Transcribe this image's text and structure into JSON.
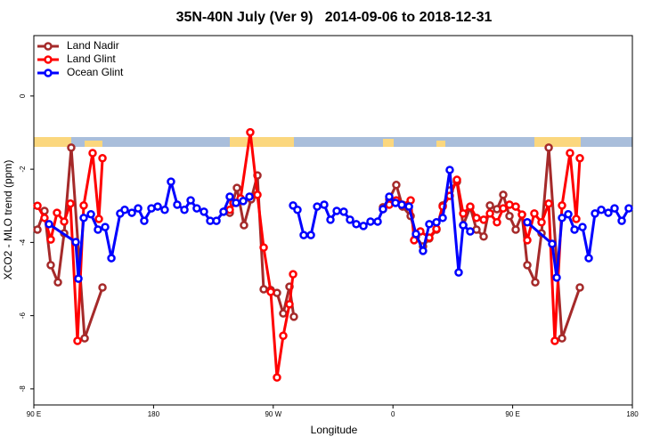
{
  "chart_data": {
    "type": "line",
    "title": "35N-40N July (Ver 9)   2014-09-06 to 2018-12-31",
    "x_label": "Longitude",
    "y_label": "XCO2 - MLO trend (ppm)",
    "xlim": [
      90,
      540
    ],
    "xticks": [
      90,
      180,
      {
        "value": 270,
        "label": "90 W"
      },
      {
        "value": 360,
        "label": "0"
      },
      {
        "value": 450,
        "label": "90 E"
      },
      {
        "value": 540,
        "label": "180"
      }
    ],
    "xtick_first_label": "90 E",
    "ylim": [
      -8.44,
      1.65
    ],
    "yticks": [
      0,
      -2,
      -4,
      -6,
      -8
    ],
    "legend_position": "top-left",
    "series": [
      {
        "name": "Land Nadir",
        "color": "#a52a2a",
        "x": [
          92.7,
          98.0,
          102.7,
          108.1,
          112.8,
          118.1,
          128.2,
          141.6,
          null,
          237.3,
          242.7,
          248.0,
          253.4,
          258.1,
          262.8,
          268.1,
          272.8,
          277.5,
          282.2,
          285.5,
          null,
          352.5,
          357.2,
          362.5,
          367.2,
          373.3,
          377.3,
          382.6,
          387.3,
          392.7,
          397.4,
          402.7,
          408.1,
          412.8,
          418.1,
          422.8,
          428.2,
          432.9,
          438.2,
          442.9,
          447.6,
          452.3,
          457.0,
          461.0,
          467.0,
          471.7,
          477.1,
          487.1,
          500.5
        ],
        "values": [
          -3.65,
          -3.14,
          -4.62,
          -5.09,
          -3.75,
          -1.41,
          -6.62,
          -5.23,
          null,
          -3.19,
          -2.51,
          -3.53,
          -2.82,
          -2.17,
          -5.28,
          -5.3,
          -5.38,
          -5.94,
          -5.21,
          -6.03,
          null,
          -3.04,
          -2.82,
          -2.43,
          -3.02,
          -3.28,
          -3.84,
          -4.11,
          -3.89,
          -3.65,
          -2.99,
          -2.58,
          -2.34,
          -3.53,
          -3.04,
          -3.65,
          -3.84,
          -2.99,
          -3.09,
          -2.7,
          -3.28,
          -3.65,
          -3.24,
          -4.62,
          -5.09,
          -3.75,
          -1.41,
          -6.62,
          -5.23
        ]
      },
      {
        "name": "Land Glint",
        "color": "#ff0000",
        "x": [
          92.7,
          98.0,
          102.7,
          107.4,
          112.8,
          117.5,
          122.8,
          127.5,
          134.2,
          138.9,
          141.6,
          null,
          237.3,
          240.0,
          245.4,
          252.7,
          258.1,
          262.8,
          268.1,
          272.8,
          277.5,
          282.2,
          284.9,
          null,
          352.5,
          357.2,
          362.5,
          367.2,
          373.3,
          375.9,
          380.6,
          387.3,
          392.7,
          397.4,
          402.7,
          408.1,
          412.8,
          418.1,
          422.8,
          428.2,
          432.9,
          438.2,
          442.9,
          447.6,
          452.3,
          457.0,
          461.0,
          466.3,
          471.7,
          477.1,
          481.7,
          487.1,
          493.1,
          497.8,
          500.5
        ],
        "values": [
          -3.0,
          -3.33,
          -3.92,
          -3.19,
          -3.43,
          -2.94,
          -6.69,
          -2.99,
          -1.56,
          -3.36,
          -1.7,
          null,
          -3.11,
          -2.92,
          -2.8,
          -0.99,
          -2.7,
          -4.14,
          -5.35,
          -7.69,
          -6.55,
          -5.69,
          -4.87,
          null,
          -3.09,
          -2.97,
          -2.85,
          -2.97,
          -2.85,
          -3.94,
          -3.7,
          -3.87,
          -3.63,
          -3.02,
          -2.73,
          -2.29,
          -3.21,
          -3.02,
          -3.33,
          -3.38,
          -3.21,
          -3.45,
          -3.07,
          -2.97,
          -3.02,
          -3.24,
          -3.94,
          -3.21,
          -3.45,
          -2.94,
          -6.69,
          -2.99,
          -1.56,
          -3.36,
          -1.7
        ]
      },
      {
        "name": "Ocean Glint",
        "color": "#0000ff",
        "x": [
          101.4,
          121.5,
          123.5,
          127.5,
          132.9,
          138.2,
          143.6,
          148.3,
          154.9,
          158.3,
          163.7,
          168.4,
          173.0,
          178.4,
          183.1,
          188.4,
          193.1,
          197.8,
          203.2,
          207.9,
          212.5,
          217.9,
          222.6,
          227.3,
          232.6,
          237.3,
          242.0,
          247.4,
          252.1,
          null,
          284.9,
          288.2,
          292.9,
          298.3,
          303.0,
          308.3,
          313.0,
          317.7,
          323.0,
          327.7,
          332.4,
          337.8,
          343.1,
          348.5,
          352.5,
          357.2,
          361.9,
          366.6,
          372.0,
          377.3,
          382.6,
          387.3,
          392.7,
          397.4,
          402.7,
          409.4,
          412.8,
          418.1,
          null,
          461.0,
          479.7,
          483.1,
          487.1,
          491.8,
          496.5,
          502.5,
          507.2,
          511.9,
          516.6,
          521.9,
          526.6,
          532.0,
          537.3
        ],
        "values": [
          -3.5,
          -3.99,
          -4.99,
          -3.33,
          -3.23,
          -3.65,
          -3.58,
          -4.43,
          -3.21,
          -3.11,
          -3.19,
          -3.07,
          -3.41,
          -3.07,
          -3.02,
          -3.11,
          -2.34,
          -2.97,
          -3.11,
          -2.85,
          -3.07,
          -3.16,
          -3.41,
          -3.41,
          -3.16,
          -2.75,
          -2.92,
          -2.87,
          -2.75,
          null,
          -2.99,
          -3.11,
          -3.8,
          -3.8,
          -3.02,
          -2.97,
          -3.38,
          -3.14,
          -3.16,
          -3.38,
          -3.5,
          -3.55,
          -3.43,
          -3.43,
          -3.09,
          -2.75,
          -2.92,
          -2.97,
          -3.02,
          -3.77,
          -4.23,
          -3.5,
          -3.45,
          -3.33,
          -2.02,
          -4.82,
          -3.53,
          -3.7,
          null,
          -3.45,
          -4.04,
          -4.96,
          -3.33,
          -3.23,
          -3.65,
          -3.58,
          -4.43,
          -3.21,
          -3.11,
          -3.19,
          -3.07,
          -3.41,
          -3.07
        ]
      }
    ]
  }
}
